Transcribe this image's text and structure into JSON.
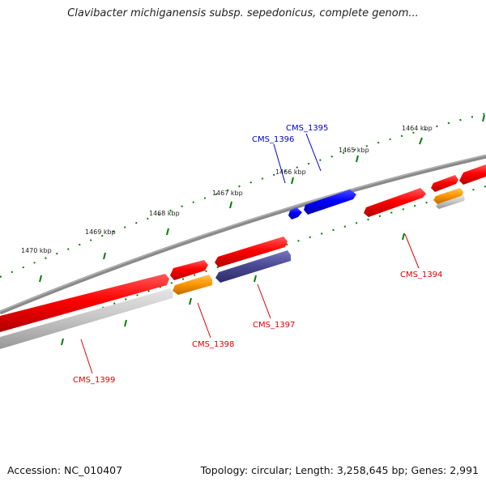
{
  "title": "Clavibacter michiganensis subsp. sepedonicus, complete genom...",
  "footer": {
    "accession": "Accession: NC_010407",
    "summary": "Topology: circular; Length: 3,258,645 bp; Genes: 2,991"
  },
  "colors": {
    "backbone": "#808080",
    "gene_forward_red": "#ff0000",
    "gene_blue": "#0000ff",
    "gene_purple": "#4b4b96",
    "gene_orange": "#ff9900",
    "gene_gray": "#c8c8c8",
    "ticks": "#008000",
    "label_red": "#e00000",
    "label_blue": "#0000cc"
  },
  "scale_labels": [
    "1464 kbp",
    "1465 kbp",
    "1466 kbp",
    "1467 kbp",
    "1468 kbp",
    "1469 kbp",
    "1470 kbp"
  ],
  "gene_labels": [
    {
      "id": "CMS_1395",
      "text": "CMS_1395",
      "color": "blue"
    },
    {
      "id": "CMS_1396",
      "text": "CMS_1396",
      "color": "blue"
    },
    {
      "id": "CMS_1394",
      "text": "CMS_1394",
      "color": "red"
    },
    {
      "id": "CMS_1397",
      "text": "CMS_1397",
      "color": "red"
    },
    {
      "id": "CMS_1398",
      "text": "CMS_1398",
      "color": "red"
    },
    {
      "id": "CMS_1399",
      "text": "CMS_1399",
      "color": "red"
    }
  ]
}
